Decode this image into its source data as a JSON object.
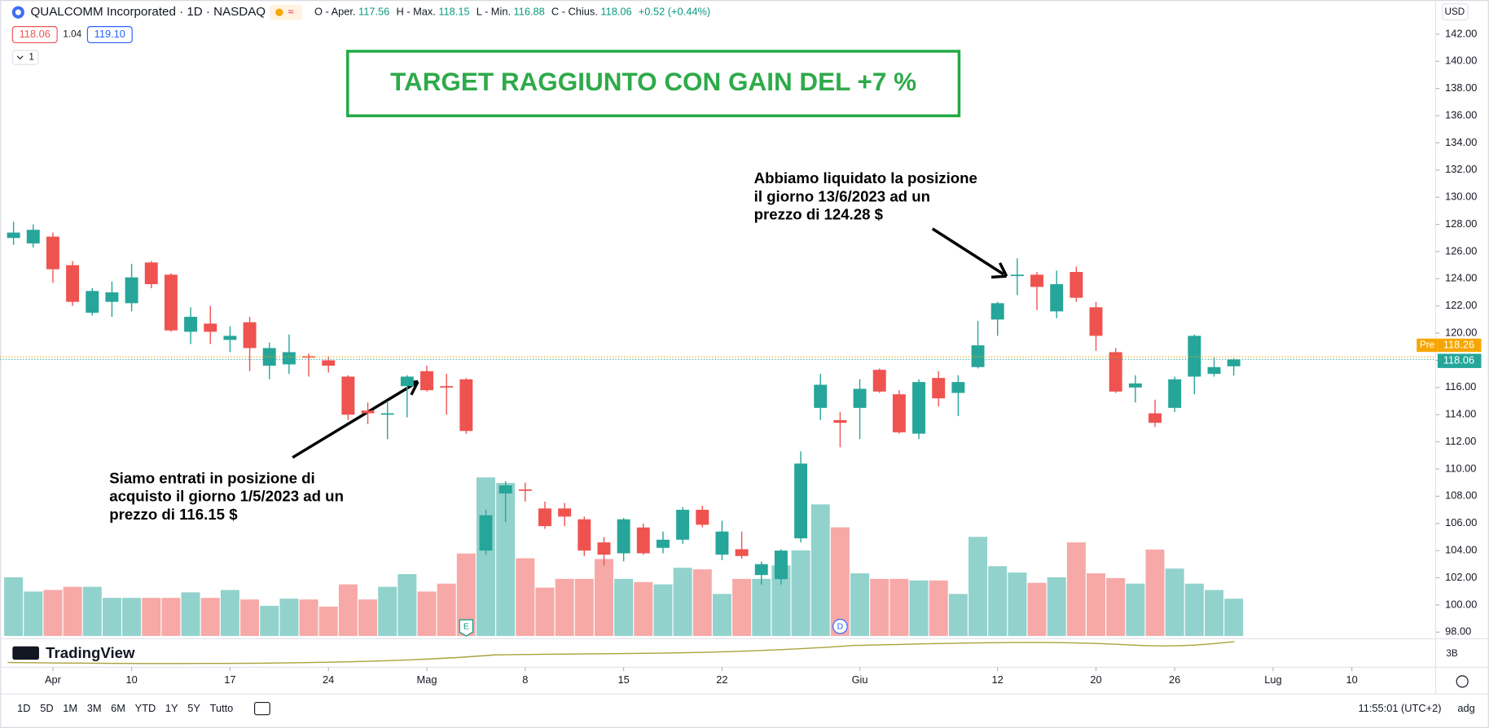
{
  "chart_data": {
    "type": "candlestick",
    "title": "QUALCOMM Incorporated · 1D · NASDAQ",
    "up_color": "#26a69a",
    "down_color": "#ef5350",
    "open": [
      127.0,
      126.6,
      127.1,
      125.0,
      121.5,
      122.3,
      122.2,
      125.2,
      124.3,
      120.1,
      120.7,
      119.5,
      120.8,
      117.6,
      117.7,
      118.3,
      118.0,
      116.8,
      114.3,
      114.0,
      116.1,
      117.2,
      116.1,
      116.6,
      104.0,
      108.2,
      108.5,
      107.1,
      107.1,
      106.3,
      104.6,
      103.8,
      105.7,
      104.2,
      104.8,
      107.0,
      103.7,
      104.1,
      102.2,
      101.9,
      104.9,
      114.5,
      113.6,
      114.5,
      117.3,
      115.5,
      112.6,
      116.7,
      115.6,
      117.5,
      121.0,
      124.25,
      124.3,
      121.6,
      124.5,
      121.9,
      118.6,
      116.0,
      114.1,
      114.5,
      116.8,
      117.0,
      117.56
    ],
    "high": [
      128.2,
      128.0,
      127.4,
      125.3,
      123.3,
      123.8,
      125.1,
      125.3,
      124.4,
      121.9,
      122.0,
      120.5,
      121.2,
      119.3,
      119.9,
      118.5,
      118.3,
      116.9,
      114.9,
      115.0,
      116.9,
      117.6,
      117.0,
      116.7,
      107.0,
      109.1,
      109.0,
      107.6,
      107.5,
      106.5,
      105.0,
      106.4,
      106.0,
      105.4,
      107.2,
      107.3,
      106.2,
      105.4,
      103.2,
      104.1,
      111.3,
      117.0,
      114.2,
      116.6,
      117.4,
      115.8,
      116.6,
      117.2,
      116.9,
      120.9,
      122.3,
      125.5,
      124.5,
      124.6,
      124.9,
      122.3,
      118.9,
      116.9,
      115.1,
      116.8,
      119.9,
      118.2,
      118.15
    ],
    "low": [
      126.5,
      126.3,
      123.7,
      122.0,
      121.3,
      121.2,
      121.6,
      123.3,
      120.1,
      119.2,
      119.2,
      118.6,
      117.2,
      116.6,
      117.0,
      116.8,
      117.1,
      113.6,
      113.3,
      112.2,
      113.8,
      115.7,
      114.0,
      112.6,
      103.7,
      106.1,
      107.6,
      105.6,
      105.8,
      103.6,
      102.9,
      103.2,
      103.7,
      103.8,
      104.5,
      105.7,
      103.3,
      103.4,
      101.5,
      101.5,
      104.6,
      113.6,
      111.6,
      112.2,
      115.6,
      112.6,
      112.2,
      114.6,
      113.9,
      117.4,
      119.8,
      122.8,
      121.7,
      121.1,
      122.3,
      118.7,
      115.6,
      114.9,
      113.1,
      114.2,
      115.5,
      116.8,
      116.88
    ],
    "close": [
      127.4,
      127.6,
      124.7,
      122.3,
      123.1,
      123.0,
      124.1,
      123.6,
      120.2,
      121.2,
      120.1,
      119.8,
      118.9,
      118.9,
      118.6,
      118.2,
      117.6,
      114.0,
      114.1,
      114.1,
      116.8,
      115.8,
      116.0,
      112.8,
      106.6,
      108.8,
      108.4,
      105.8,
      106.5,
      104.0,
      103.7,
      106.3,
      103.8,
      104.8,
      107.0,
      105.9,
      105.4,
      103.6,
      103.0,
      104.0,
      110.4,
      116.2,
      113.4,
      115.9,
      115.7,
      112.7,
      116.4,
      115.2,
      116.4,
      119.1,
      122.2,
      124.3,
      123.4,
      123.6,
      122.6,
      119.8,
      115.7,
      116.3,
      113.4,
      116.6,
      119.8,
      117.5,
      118.06
    ],
    "volume": [
      7.4,
      5.6,
      5.8,
      6.2,
      6.2,
      4.8,
      4.8,
      4.8,
      4.8,
      5.5,
      4.8,
      5.8,
      4.6,
      3.8,
      4.7,
      4.6,
      3.7,
      6.5,
      4.6,
      6.2,
      7.8,
      5.6,
      6.6,
      10.4,
      20.0,
      19.3,
      9.8,
      6.1,
      7.2,
      7.2,
      9.7,
      7.2,
      6.8,
      6.5,
      8.6,
      8.4,
      5.3,
      7.2,
      7.2,
      8.9,
      10.8,
      16.6,
      13.7,
      7.9,
      7.2,
      7.2,
      7.0,
      7.0,
      5.3,
      12.5,
      8.8,
      8.0,
      6.7,
      7.4,
      11.8,
      7.9,
      7.3,
      6.6,
      10.9,
      8.5,
      6.6,
      5.8,
      4.7
    ],
    "ylim": [
      97.58,
      144.51
    ],
    "yticks": [
      {
        "value": 98,
        "label": "98.00"
      },
      {
        "value": 100,
        "label": "100.00"
      },
      {
        "value": 102,
        "label": "102.00"
      },
      {
        "value": 104,
        "label": "104.00"
      },
      {
        "value": 106,
        "label": "106.00"
      },
      {
        "value": 108,
        "label": "108.00"
      },
      {
        "value": 110,
        "label": "110.00"
      },
      {
        "value": 112,
        "label": "112.00"
      },
      {
        "value": 114,
        "label": "114.00"
      },
      {
        "value": 116,
        "label": "116.00"
      },
      {
        "value": 118,
        "label": "118.00"
      },
      {
        "value": 120,
        "label": "120.00"
      },
      {
        "value": 122,
        "label": "122.00"
      },
      {
        "value": 124,
        "label": "124.00"
      },
      {
        "value": 126,
        "label": "126.00"
      },
      {
        "value": 128,
        "label": "128.00"
      },
      {
        "value": 130,
        "label": "130.00"
      },
      {
        "value": 132,
        "label": "132.00"
      },
      {
        "value": 134,
        "label": "134.00"
      },
      {
        "value": 136,
        "label": "136.00"
      },
      {
        "value": 138,
        "label": "138.00"
      },
      {
        "value": 140,
        "label": "140.00"
      },
      {
        "value": 142,
        "label": "142.00"
      }
    ],
    "xlim": [
      -0.68,
      72.26
    ],
    "xticks": [
      {
        "value": 2,
        "label": "Apr"
      },
      {
        "value": 6,
        "label": "10"
      },
      {
        "value": 11,
        "label": "17"
      },
      {
        "value": 16,
        "label": "24"
      },
      {
        "value": 21,
        "label": "Mag"
      },
      {
        "value": 26,
        "label": "8"
      },
      {
        "value": 31,
        "label": "15"
      },
      {
        "value": 36,
        "label": "22"
      },
      {
        "value": 43,
        "label": "Giu"
      },
      {
        "value": 50,
        "label": "12"
      },
      {
        "value": 55,
        "label": "20"
      },
      {
        "value": 59,
        "label": "26"
      },
      {
        "value": 64,
        "label": "Lug"
      },
      {
        "value": 68,
        "label": "10"
      }
    ],
    "last_price": 118.06,
    "pre_price": 118.26,
    "pre_label": "Pre",
    "currency": "USD",
    "lower_pane_label": "3B",
    "events": [
      {
        "x": 23,
        "label": "E"
      },
      {
        "x": 42,
        "label": "D"
      }
    ],
    "target_text": "TARGET RAGGIUNTO CON GAIN DEL +7 %",
    "annotations": [
      {
        "lines": [
          "Siamo entrati in posizione di",
          "acquisto il giorno 1/5/2023 ad un",
          "prezzo di 116.15 $"
        ]
      },
      {
        "lines": [
          "Abbiamo liquidato la posizione",
          "il giorno 13/6/2023 ad un",
          "prezzo di 124.28 $"
        ]
      }
    ]
  },
  "header": {
    "ohlc": [
      {
        "label": "O - Aper.",
        "value": 117.56
      },
      {
        "label": "H - Max.",
        "value": 118.15
      },
      {
        "label": "L - Min.",
        "value": 116.88
      },
      {
        "label": "C - Chius.",
        "value": 118.06
      }
    ],
    "change": "+0.52 (+0.44%)",
    "bid": 118.06,
    "spread": 1.04,
    "ask": 119.1,
    "indicator_count": "1"
  },
  "logo": "TradingView",
  "toolbar": {
    "ranges": [
      "1D",
      "5D",
      "1M",
      "3M",
      "6M",
      "YTD",
      "1Y",
      "5Y",
      "Tutto"
    ],
    "clock": "11:55:01 (UTC+2)",
    "adj": "adg"
  }
}
